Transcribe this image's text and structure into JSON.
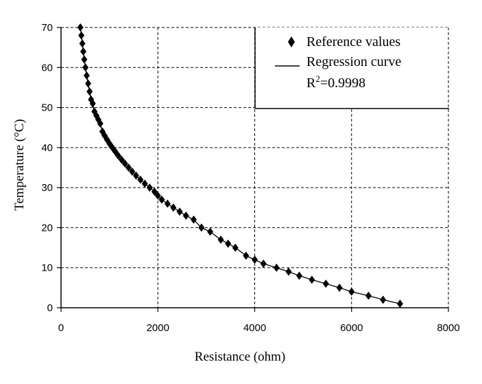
{
  "chart_data": {
    "type": "scatter",
    "xlabel": "Resistance (ohm)",
    "ylabel": "Temperature (°C)",
    "xlim": [
      0,
      8000
    ],
    "ylim": [
      0,
      70
    ],
    "xticks": [
      "0",
      "2000",
      "4000",
      "6000",
      "8000"
    ],
    "yticks": [
      "0",
      "10",
      "20",
      "30",
      "40",
      "50",
      "60",
      "70"
    ],
    "grid": true,
    "legend": {
      "position": "top-right",
      "reference_label": "Reference values",
      "curve_label": "Regression curve",
      "r2_label": "=0.9998",
      "r2_prefix": "R",
      "r2_sup": "2"
    },
    "series": [
      {
        "name": "Reference values",
        "x": [
          400,
          420,
          440,
          460,
          480,
          505,
          530,
          560,
          590,
          620,
          655,
          690,
          730,
          770,
          810,
          855,
          900,
          950,
          1000,
          1060,
          1120,
          1180,
          1250,
          1320,
          1395,
          1470,
          1550,
          1640,
          1730,
          1830,
          1930,
          2000,
          2080,
          2200,
          2320,
          2450,
          2580,
          2740,
          2900,
          3080,
          3300,
          3450,
          3600,
          3820,
          4000,
          4180,
          4450,
          4700,
          4920,
          5180,
          5470,
          5750,
          6000,
          6350,
          6650,
          7000
        ],
        "y": [
          70,
          68,
          66,
          64,
          62,
          60,
          58,
          56,
          54,
          52,
          51,
          49,
          48,
          47,
          46,
          44,
          43,
          42,
          41,
          40,
          39,
          38,
          37,
          36,
          35,
          34,
          33,
          32,
          31,
          30,
          29,
          28,
          27,
          26,
          25,
          24,
          23,
          22,
          20,
          19,
          17,
          16,
          15,
          13,
          12,
          11,
          10,
          9,
          8,
          7,
          6,
          5,
          4,
          3,
          2,
          1
        ]
      }
    ]
  }
}
